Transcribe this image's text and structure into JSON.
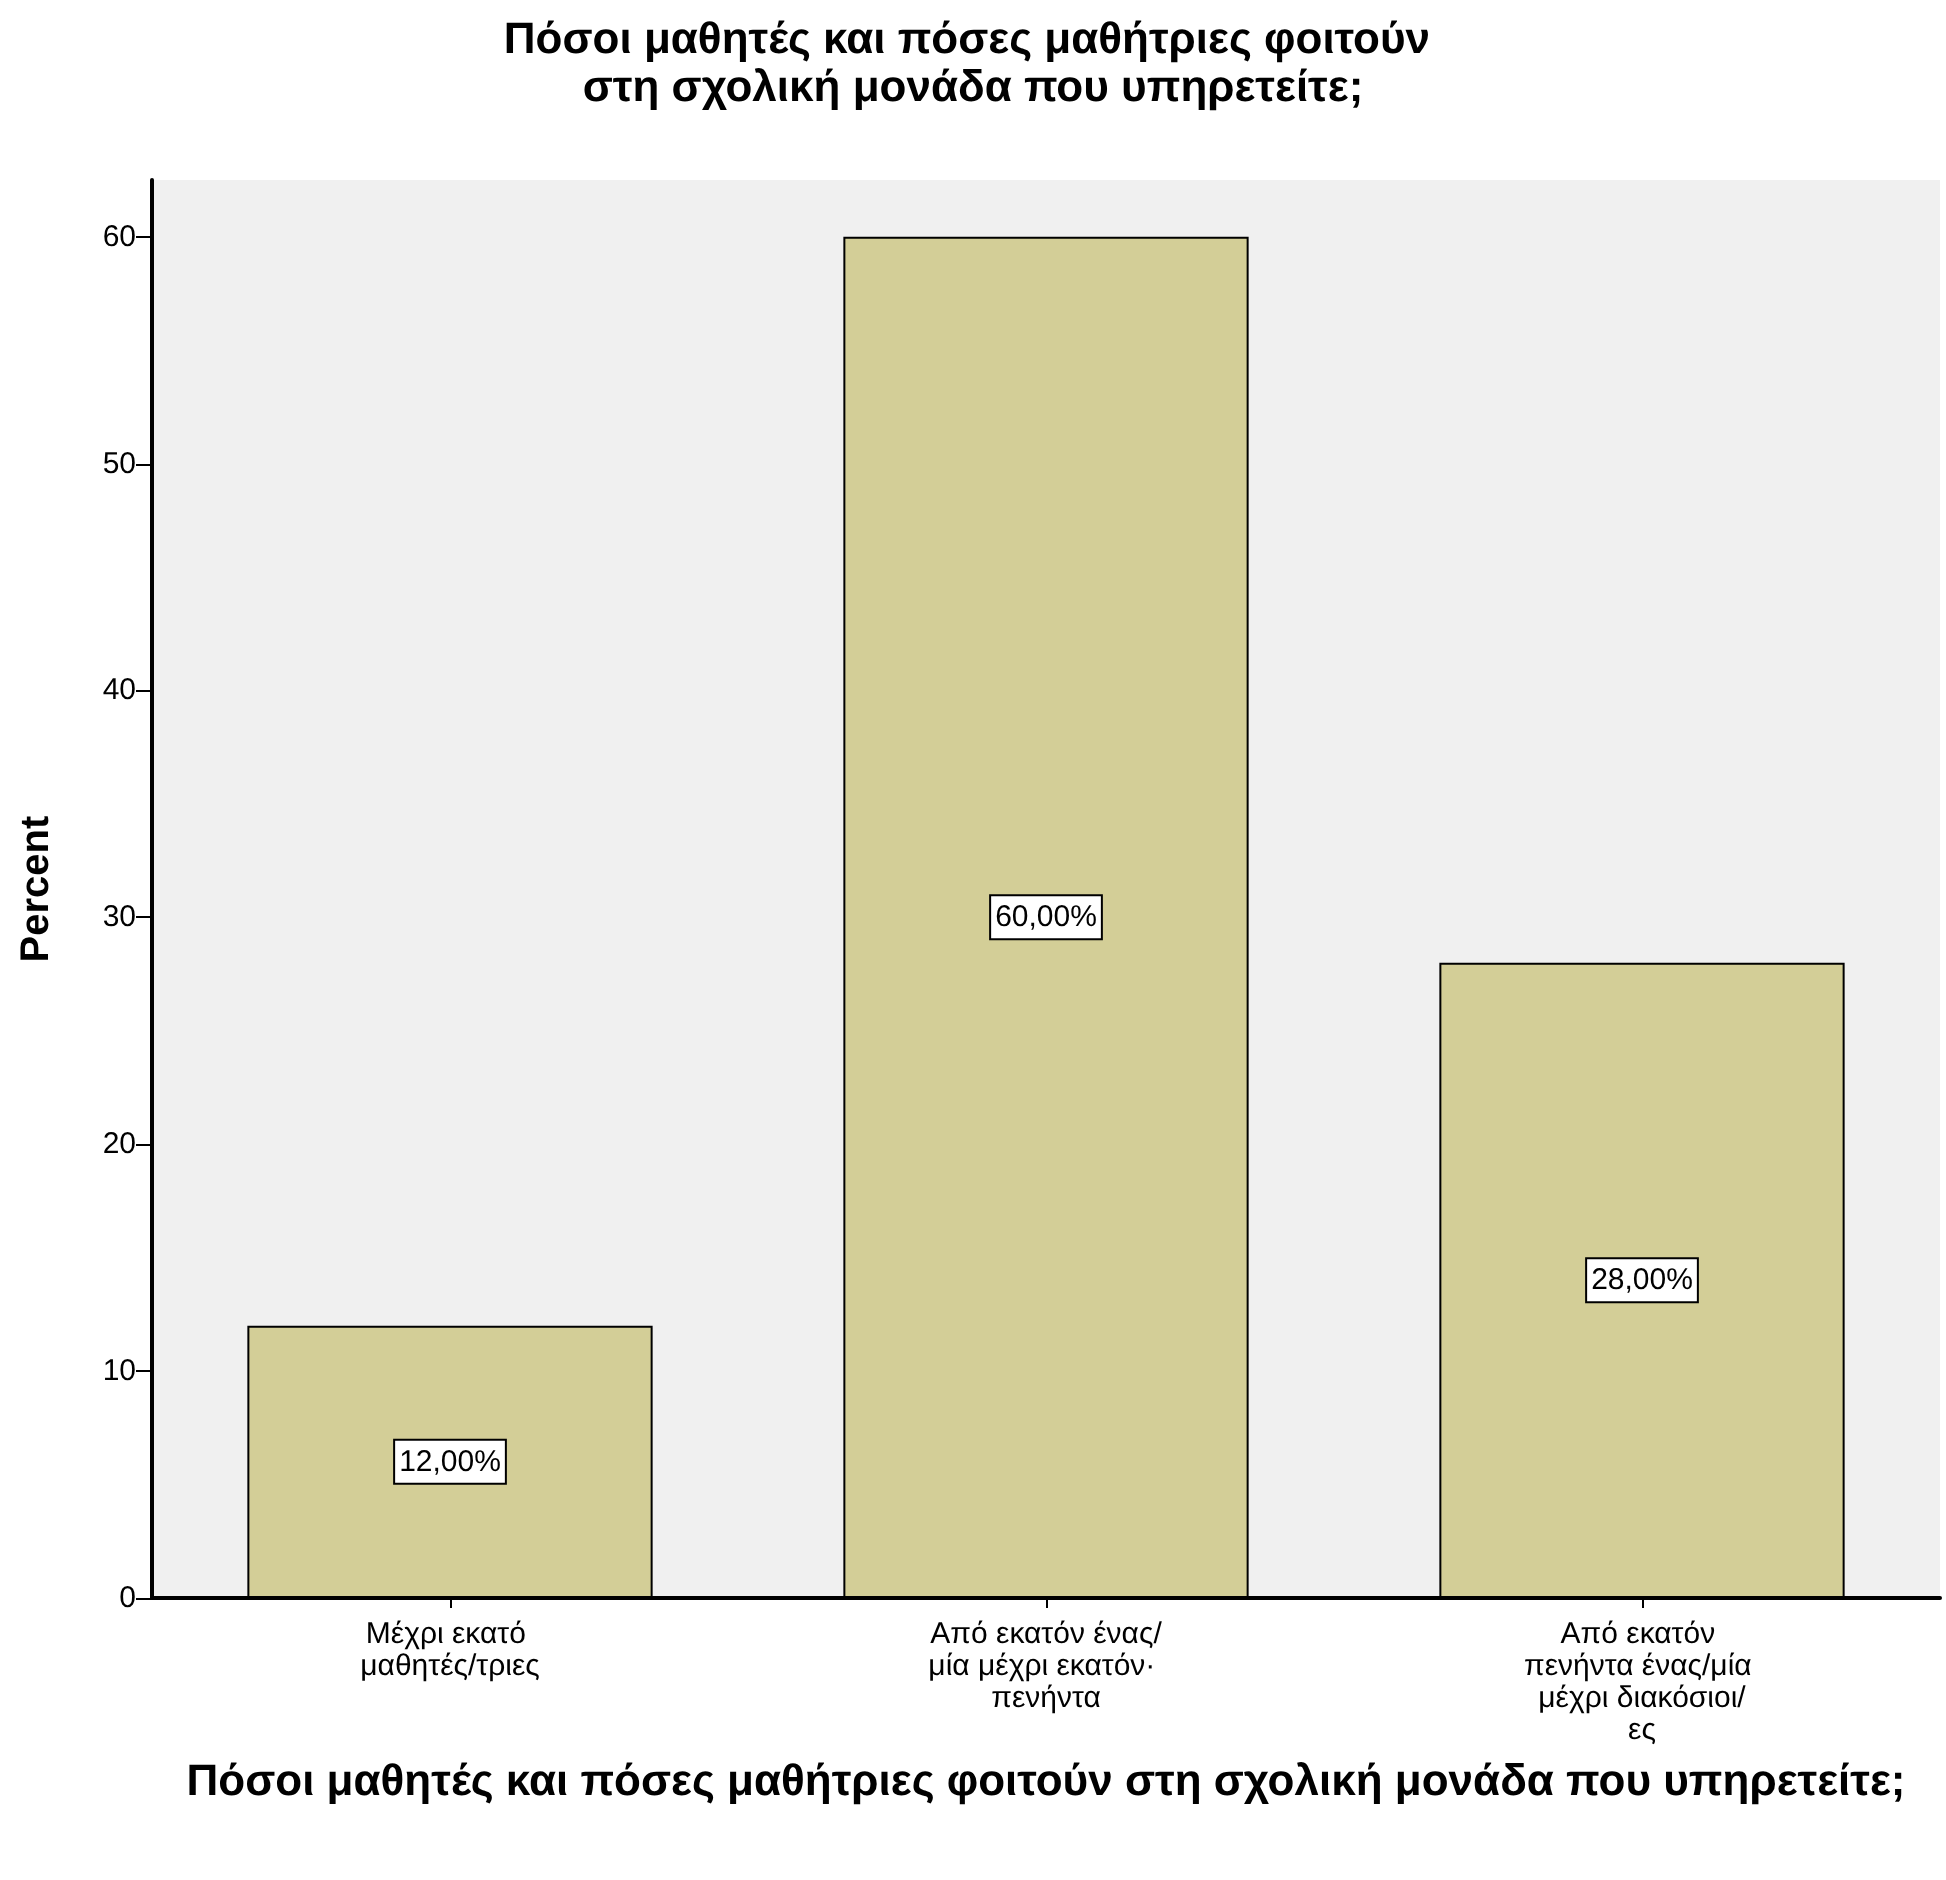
{
  "chart_data": {
    "type": "bar",
    "title": "Πόσοι μαθητές και πόσες μαθήτριες φοιτούν στη σχολική μονάδα που υπηρετείτε;",
    "xlabel": "Πόσοι μαθητές και πόσες μαθήτριες φοιτούν στη σχολική μονάδα που υπηρετείτε;",
    "ylabel": "Percent",
    "categories": [
      "Μέχρι εκατό μαθητές/τριες",
      "Από εκατόν ένας/μία μέχρι εκατόν· πενήντα",
      "Από εκατόν πενήντα ένας/μία μέχρι διακόσιοι/ες"
    ],
    "values": [
      12,
      60,
      28
    ],
    "value_labels": [
      "12,00%",
      "60,00%",
      "28,00%"
    ],
    "color": "#d3ce97",
    "ylim": [
      0,
      62.5
    ],
    "yticks": [
      0,
      10,
      20,
      30,
      40,
      50,
      60
    ],
    "grid": false
  }
}
